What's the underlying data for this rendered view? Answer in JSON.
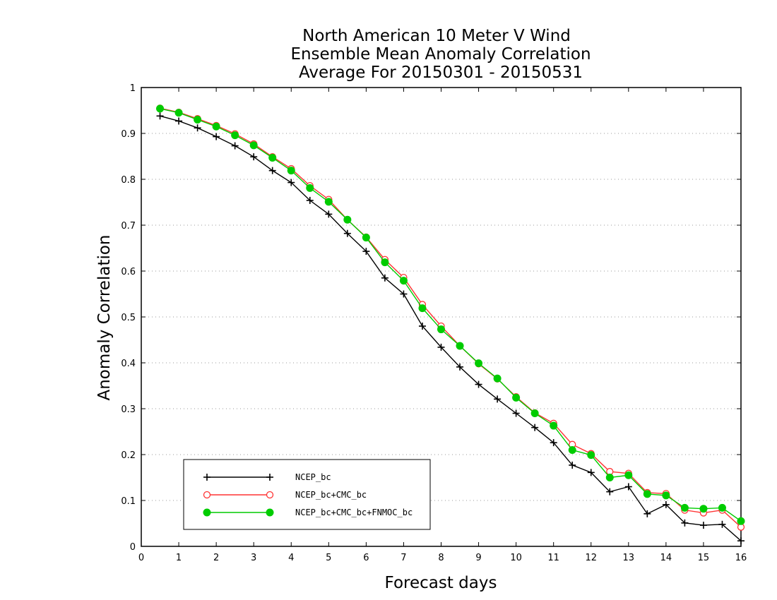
{
  "chart_data": {
    "type": "line",
    "title_lines": [
      "North American 10 Meter V Wind",
      "Ensemble Mean Anomaly Correlation",
      "Average For 20150301 - 20150531"
    ],
    "xlabel": "Forecast days",
    "ylabel": "Anomaly Correlation",
    "xlim": [
      0,
      16
    ],
    "ylim": [
      0,
      1
    ],
    "x_ticks": [
      "0",
      "1",
      "2",
      "3",
      "4",
      "5",
      "6",
      "7",
      "8",
      "9",
      "10",
      "11",
      "12",
      "13",
      "14",
      "15",
      "16"
    ],
    "y_ticks": [
      "0",
      "0.1",
      "0.2",
      "0.3",
      "0.4",
      "0.5",
      "0.6",
      "0.7",
      "0.8",
      "0.9",
      "1"
    ],
    "grid": "horizontal dotted",
    "legend_position": "bottom-left",
    "x": [
      0.5,
      1,
      1.5,
      2,
      2.5,
      3,
      3.5,
      4,
      4.5,
      5,
      5.5,
      6,
      6.5,
      7,
      7.5,
      8,
      8.5,
      9,
      9.5,
      10,
      10.5,
      11,
      11.5,
      12,
      12.5,
      13,
      13.5,
      14,
      14.5,
      15,
      15.5,
      16
    ],
    "series": [
      {
        "name": "NCEP_bc",
        "color": "#000000",
        "marker": "plus",
        "values": [
          0.938,
          0.927,
          0.912,
          0.893,
          0.873,
          0.849,
          0.819,
          0.793,
          0.754,
          0.724,
          0.682,
          0.643,
          0.585,
          0.55,
          0.48,
          0.434,
          0.391,
          0.353,
          0.321,
          0.29,
          0.259,
          0.226,
          0.177,
          0.161,
          0.119,
          0.13,
          0.071,
          0.091,
          0.051,
          0.046,
          0.048,
          0.012
        ]
      },
      {
        "name": "NCEP_bc+CMC_bc",
        "color": "#ff3333",
        "marker": "open-circle",
        "values": [
          0.955,
          0.946,
          0.932,
          0.917,
          0.899,
          0.877,
          0.849,
          0.823,
          0.786,
          0.756,
          0.712,
          0.674,
          0.625,
          0.586,
          0.527,
          0.48,
          0.437,
          0.398,
          0.365,
          0.326,
          0.291,
          0.268,
          0.222,
          0.202,
          0.163,
          0.159,
          0.117,
          0.115,
          0.079,
          0.073,
          0.079,
          0.042
        ]
      },
      {
        "name": "NCEP_bc+CMC_bc+FNMOC_bc",
        "color": "#00cc00",
        "marker": "filled-circle",
        "values": [
          0.954,
          0.945,
          0.93,
          0.915,
          0.896,
          0.874,
          0.847,
          0.819,
          0.781,
          0.751,
          0.712,
          0.673,
          0.619,
          0.579,
          0.519,
          0.473,
          0.437,
          0.399,
          0.366,
          0.324,
          0.29,
          0.263,
          0.21,
          0.199,
          0.15,
          0.155,
          0.114,
          0.111,
          0.084,
          0.082,
          0.084,
          0.055
        ]
      }
    ]
  }
}
